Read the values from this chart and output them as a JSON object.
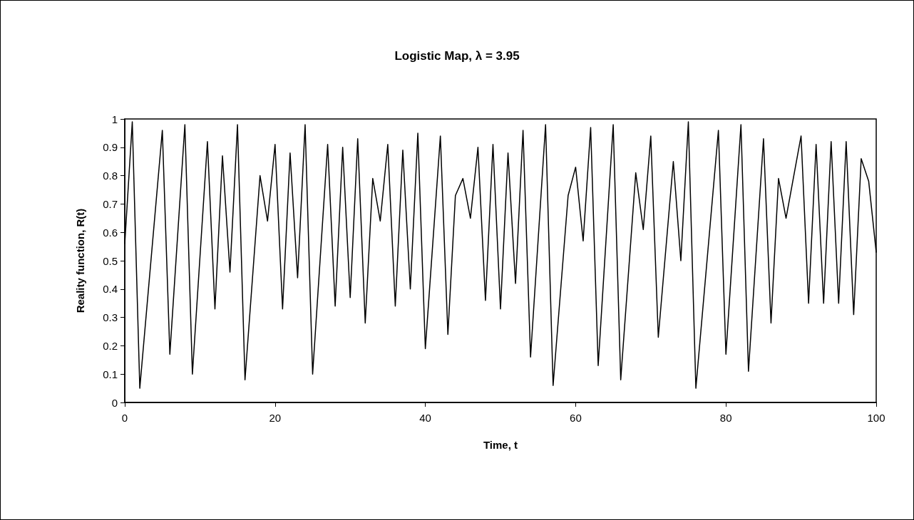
{
  "chart_data": {
    "type": "line",
    "title": "Logistic Map, λ = 3.95",
    "xlabel": "Time, t",
    "ylabel": "Reality function, R(t)",
    "x": [
      0,
      1,
      2,
      5,
      6,
      8,
      9,
      11,
      12,
      13,
      14,
      15,
      16,
      18,
      19,
      20,
      21,
      22,
      23,
      24,
      25,
      27,
      28,
      29,
      30,
      31,
      32,
      33,
      34,
      35,
      36,
      37,
      38,
      39,
      40,
      42,
      43,
      44,
      45,
      46,
      47,
      48,
      49,
      50,
      51,
      52,
      53,
      54,
      56,
      57,
      59,
      60,
      61,
      62,
      63,
      65,
      66,
      68,
      69,
      70,
      71,
      73,
      74,
      75,
      76,
      79,
      80,
      82,
      83,
      85,
      86,
      87,
      88,
      90,
      91,
      92,
      93,
      94,
      95,
      96,
      97,
      98,
      99,
      100
    ],
    "series": [
      {
        "color": "#000000",
        "values": [
          0.56,
          0.99,
          0.05,
          0.96,
          0.17,
          0.98,
          0.1,
          0.92,
          0.33,
          0.87,
          0.46,
          0.98,
          0.08,
          0.8,
          0.64,
          0.91,
          0.33,
          0.88,
          0.44,
          0.98,
          0.1,
          0.91,
          0.34,
          0.9,
          0.37,
          0.93,
          0.28,
          0.79,
          0.64,
          0.91,
          0.34,
          0.89,
          0.4,
          0.95,
          0.19,
          0.94,
          0.24,
          0.73,
          0.79,
          0.65,
          0.9,
          0.36,
          0.91,
          0.33,
          0.88,
          0.42,
          0.96,
          0.16,
          0.98,
          0.06,
          0.73,
          0.83,
          0.57,
          0.97,
          0.13,
          0.98,
          0.08,
          0.81,
          0.61,
          0.94,
          0.23,
          0.85,
          0.5,
          0.99,
          0.05,
          0.96,
          0.17,
          0.98,
          0.11,
          0.93,
          0.28,
          0.79,
          0.65,
          0.94,
          0.35,
          0.91,
          0.35,
          0.92,
          0.35,
          0.92,
          0.31,
          0.86,
          0.78,
          0.53
        ]
      }
    ],
    "xlim": [
      0,
      100
    ],
    "xticks": [
      0,
      20,
      40,
      60,
      80,
      100
    ],
    "ylim": [
      0,
      1
    ],
    "yticks": [
      0,
      0.1,
      0.2,
      0.3,
      0.4,
      0.5,
      0.6,
      0.7,
      0.8,
      0.9,
      1
    ],
    "grid": false,
    "marker": "none",
    "line_style": "solid"
  }
}
